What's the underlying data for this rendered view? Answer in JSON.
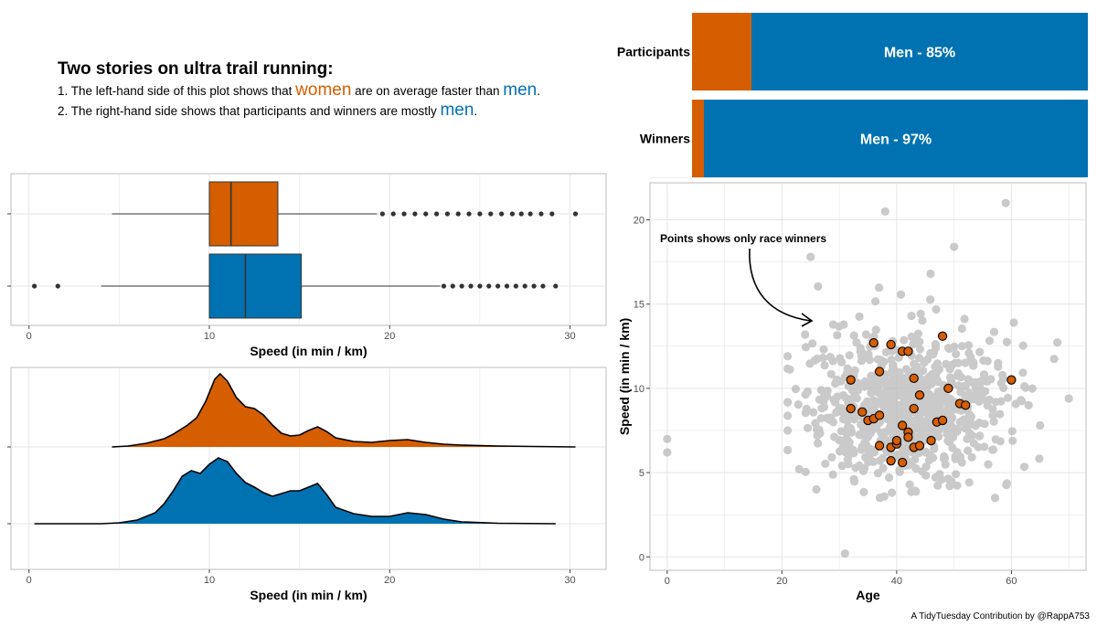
{
  "headline": {
    "title": "Two stories on ultra trail running:",
    "line1_pre": "1. The left-hand side of this plot shows that ",
    "line1_women": "women",
    "line1_mid": " are on average faster than ",
    "line1_men": "men",
    "line1_end": ".",
    "line2_pre": "2. The right-hand side shows that participants and winners are mostly ",
    "line2_men": "men",
    "line2_end": "."
  },
  "colors": {
    "women": "#D55E00",
    "men": "#0072B2",
    "participants": "#BDBDBD",
    "grid": "#E5E5E5",
    "panel_border": "#BEBEBE"
  },
  "credit": "A TidyTuesday Contribution by @RappA753",
  "chart_data": [
    {
      "type": "bar",
      "orientation": "horizontal-stacked",
      "categories": [
        "Participants",
        "Winners"
      ],
      "series": [
        {
          "name": "Women",
          "values": [
            15,
            3
          ]
        },
        {
          "name": "Men",
          "values": [
            85,
            97
          ]
        }
      ],
      "data_labels": [
        "Men - 85%",
        "Men - 97%"
      ]
    },
    {
      "type": "boxplot",
      "xlabel": "Speed (in min / km)",
      "xlim": [
        -1,
        32
      ],
      "xticks": [
        0,
        10,
        20,
        30
      ],
      "boxes": [
        {
          "group": "Women",
          "whisker_low": 4.6,
          "q1": 10.0,
          "median": 11.2,
          "q3": 13.8,
          "whisker_high": 19.3,
          "outliers": [
            19.6,
            20.2,
            20.8,
            21.4,
            22.0,
            22.6,
            23.2,
            23.8,
            24.4,
            25.0,
            25.6,
            26.2,
            26.8,
            27.3,
            27.8,
            28.4,
            29.0,
            30.3
          ]
        },
        {
          "group": "Men",
          "whisker_low": 4.0,
          "q1": 10.0,
          "median": 12.0,
          "q3": 15.1,
          "whisker_high": 22.8,
          "outliers": [
            0.3,
            1.6,
            23.0,
            23.5,
            24.0,
            24.5,
            25.0,
            25.5,
            26.0,
            26.5,
            27.0,
            27.5,
            28.0,
            28.5,
            29.2
          ]
        }
      ]
    },
    {
      "type": "area",
      "subtype": "ridgeline",
      "xlabel": "Speed (in min / km)",
      "xlim": [
        -1,
        32
      ],
      "xticks": [
        0,
        10,
        20,
        30
      ],
      "series": [
        {
          "name": "Women",
          "x": [
            4.6,
            5.5,
            6.5,
            7.5,
            8.0,
            8.8,
            9.3,
            9.8,
            10.3,
            10.6,
            11.0,
            11.5,
            12.0,
            12.5,
            13.0,
            13.5,
            14.0,
            14.5,
            15.0,
            15.5,
            16.0,
            16.5,
            17.0,
            18.0,
            19.0,
            20.0,
            21.0,
            22.0,
            23.0,
            24.0,
            26.0,
            28.0,
            30.3
          ],
          "density": [
            0.0,
            0.01,
            0.04,
            0.09,
            0.14,
            0.24,
            0.32,
            0.5,
            0.74,
            0.8,
            0.72,
            0.54,
            0.44,
            0.42,
            0.35,
            0.24,
            0.15,
            0.12,
            0.13,
            0.18,
            0.22,
            0.17,
            0.1,
            0.06,
            0.05,
            0.07,
            0.08,
            0.05,
            0.03,
            0.02,
            0.01,
            0.005,
            0.0
          ]
        },
        {
          "name": "Men",
          "x": [
            0.3,
            4.0,
            5.0,
            6.0,
            7.0,
            7.5,
            8.0,
            8.5,
            9.0,
            9.5,
            10.0,
            10.5,
            11.0,
            11.5,
            12.0,
            12.5,
            13.0,
            13.5,
            14.0,
            14.5,
            15.0,
            15.5,
            16.0,
            16.5,
            17.0,
            18.0,
            19.0,
            20.0,
            21.0,
            22.0,
            23.0,
            24.0,
            26.0,
            29.2
          ],
          "density": [
            0.0,
            0.0,
            0.01,
            0.04,
            0.12,
            0.22,
            0.36,
            0.52,
            0.58,
            0.55,
            0.65,
            0.72,
            0.68,
            0.55,
            0.45,
            0.4,
            0.34,
            0.3,
            0.33,
            0.36,
            0.36,
            0.4,
            0.44,
            0.32,
            0.18,
            0.11,
            0.08,
            0.08,
            0.12,
            0.1,
            0.05,
            0.02,
            0.005,
            0.0
          ]
        }
      ]
    },
    {
      "type": "scatter",
      "xlabel": "Age",
      "ylabel": "Speed (in min / km)",
      "xlim": [
        -3,
        73
      ],
      "ylim": [
        -0.8,
        22.2
      ],
      "xticks": [
        0,
        20,
        40,
        60
      ],
      "yticks": [
        0,
        5,
        10,
        15,
        20
      ],
      "annotation": "Points shows only race winners",
      "series": [
        {
          "name": "Participants",
          "points": "cloud",
          "extreme_points": [
            [
              0,
              6.2
            ],
            [
              0,
              7.0
            ],
            [
              25,
              17.8
            ],
            [
              38,
              20.5
            ],
            [
              59,
              21.0
            ],
            [
              31,
              0.2
            ],
            [
              50,
              18.4
            ],
            [
              70,
              9.4
            ],
            [
              63,
              9.0
            ],
            [
              65,
              7.8
            ],
            [
              21,
              7.5
            ],
            [
              23,
              5.2
            ],
            [
              26,
              4.0
            ]
          ]
        },
        {
          "name": "Winners",
          "points": [
            [
              32,
              8.8
            ],
            [
              32,
              10.5
            ],
            [
              34,
              8.6
            ],
            [
              35,
              8.1
            ],
            [
              36,
              8.2
            ],
            [
              36,
              12.7
            ],
            [
              37,
              6.6
            ],
            [
              37,
              8.4
            ],
            [
              37,
              11.0
            ],
            [
              39,
              12.6
            ],
            [
              39,
              5.7
            ],
            [
              39,
              6.5
            ],
            [
              40,
              6.7
            ],
            [
              40,
              6.9
            ],
            [
              41,
              5.6
            ],
            [
              41,
              7.8
            ],
            [
              41,
              12.2
            ],
            [
              42,
              7.4
            ],
            [
              42,
              12.2
            ],
            [
              42,
              7.1
            ],
            [
              43,
              10.6
            ],
            [
              43,
              6.5
            ],
            [
              43,
              8.8
            ],
            [
              44,
              9.6
            ],
            [
              44,
              6.6
            ],
            [
              46,
              6.9
            ],
            [
              47,
              8.0
            ],
            [
              48,
              8.1
            ],
            [
              48,
              13.1
            ],
            [
              49,
              10.0
            ],
            [
              51,
              9.1
            ],
            [
              52,
              9.0
            ],
            [
              60,
              10.5
            ]
          ]
        }
      ]
    }
  ]
}
